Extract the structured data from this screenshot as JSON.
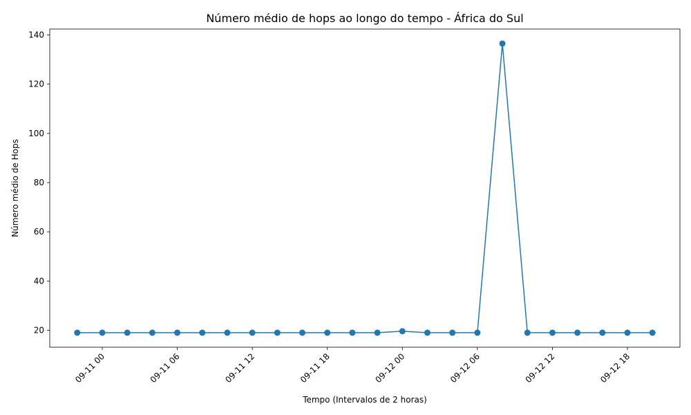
{
  "chart_data": {
    "type": "line",
    "title": "Número médio de hops ao longo do tempo - África do Sul",
    "xlabel": "Tempo (Intervalos de 2 horas)",
    "ylabel": "Número médio de Hops",
    "x": [
      "2023-09-10T22:00",
      "2023-09-11T00:00",
      "2023-09-11T02:00",
      "2023-09-11T04:00",
      "2023-09-11T06:00",
      "2023-09-11T08:00",
      "2023-09-11T10:00",
      "2023-09-11T12:00",
      "2023-09-11T14:00",
      "2023-09-11T16:00",
      "2023-09-11T18:00",
      "2023-09-11T20:00",
      "2023-09-11T22:00",
      "2023-09-12T00:00",
      "2023-09-12T02:00",
      "2023-09-12T04:00",
      "2023-09-12T06:00",
      "2023-09-12T08:00",
      "2023-09-12T10:00",
      "2023-09-12T12:00",
      "2023-09-12T14:00",
      "2023-09-12T16:00",
      "2023-09-12T18:00",
      "2023-09-12T20:00"
    ],
    "values": [
      19,
      19,
      19,
      19,
      19,
      19,
      19,
      19,
      19,
      19,
      19,
      19,
      19,
      19.6,
      19,
      19,
      19,
      136.5,
      19,
      19,
      19,
      19,
      19,
      19
    ],
    "xticks": [
      {
        "x": "2023-09-11T00:00",
        "label": "09-11 00"
      },
      {
        "x": "2023-09-11T06:00",
        "label": "09-11 06"
      },
      {
        "x": "2023-09-11T12:00",
        "label": "09-11 12"
      },
      {
        "x": "2023-09-11T18:00",
        "label": "09-11 18"
      },
      {
        "x": "2023-09-12T00:00",
        "label": "09-12 00"
      },
      {
        "x": "2023-09-12T06:00",
        "label": "09-12 06"
      },
      {
        "x": "2023-09-12T12:00",
        "label": "09-12 12"
      },
      {
        "x": "2023-09-12T18:00",
        "label": "09-12 18"
      }
    ],
    "yticks": [
      20,
      40,
      60,
      80,
      100,
      120,
      140
    ],
    "xlim": [
      "2023-09-10T19:48",
      "2023-09-12T22:12"
    ],
    "ylim": [
      13.1,
      142.4
    ],
    "grid": false,
    "line_color": "#1f77b4",
    "marker": "circle"
  }
}
